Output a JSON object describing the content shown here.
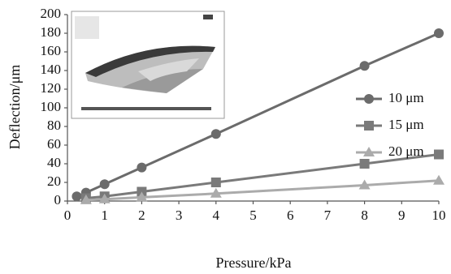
{
  "chart_data": {
    "type": "line",
    "x_label": "Pressure/kPa",
    "y_label": "Deflection/μm",
    "xlim": [
      0,
      10
    ],
    "xticks": [
      0,
      1,
      2,
      3,
      4,
      5,
      6,
      7,
      8,
      9,
      10
    ],
    "ylim": [
      0,
      200
    ],
    "yticks": [
      0,
      20,
      40,
      60,
      80,
      100,
      120,
      140,
      160,
      180,
      200
    ],
    "legend": "right",
    "series": [
      {
        "name": "10 μm",
        "color": "#6b6b6b",
        "marker": "circle",
        "x": [
          0.25,
          0.5,
          1,
          2,
          4,
          8,
          10
        ],
        "values": [
          5,
          9,
          18,
          36,
          72,
          145,
          180
        ]
      },
      {
        "name": "15 μm",
        "color": "#7a7a7a",
        "marker": "square",
        "x": [
          0.5,
          1,
          2,
          4,
          8,
          10
        ],
        "values": [
          3,
          5,
          10,
          20,
          40,
          50
        ]
      },
      {
        "name": "20 μm",
        "color": "#ababab",
        "marker": "triangle",
        "x": [
          0.5,
          1,
          2,
          4,
          8,
          10
        ],
        "values": [
          1,
          2,
          4,
          8,
          17,
          22
        ]
      }
    ]
  }
}
